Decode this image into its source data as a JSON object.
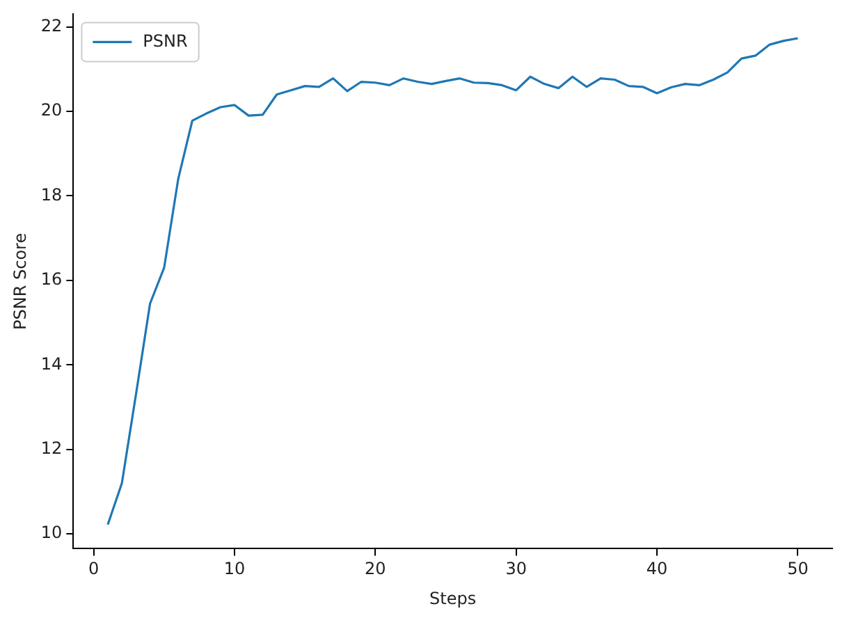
{
  "chart_data": {
    "type": "line",
    "xlabel": "Steps",
    "ylabel": "PSNR Score",
    "x": [
      1,
      2,
      3,
      4,
      5,
      6,
      7,
      8,
      9,
      10,
      11,
      12,
      13,
      14,
      15,
      16,
      17,
      18,
      19,
      20,
      21,
      22,
      23,
      24,
      25,
      26,
      27,
      28,
      29,
      30,
      31,
      32,
      33,
      34,
      35,
      36,
      37,
      38,
      39,
      40,
      41,
      42,
      43,
      44,
      45,
      46,
      47,
      48,
      49,
      50
    ],
    "series": [
      {
        "name": "PSNR",
        "color": "#1f77b4",
        "values": [
          10.22,
          11.2,
          13.3,
          15.45,
          16.3,
          18.4,
          19.78,
          19.95,
          20.1,
          20.15,
          19.9,
          19.92,
          20.4,
          20.5,
          20.6,
          20.58,
          20.78,
          20.48,
          20.7,
          20.68,
          20.62,
          20.78,
          20.7,
          20.65,
          20.72,
          20.78,
          20.68,
          20.67,
          20.62,
          20.5,
          20.82,
          20.65,
          20.55,
          20.82,
          20.58,
          20.78,
          20.75,
          20.6,
          20.58,
          20.43,
          20.57,
          20.65,
          20.62,
          20.75,
          20.92,
          21.25,
          21.32,
          21.58,
          21.67,
          21.73
        ]
      }
    ],
    "xlim": [
      -1.45,
      52.45
    ],
    "xticks": [
      0,
      10,
      20,
      30,
      40,
      50
    ],
    "ylim": [
      9.65,
      22.3
    ],
    "yticks": [
      10,
      12,
      14,
      16,
      18,
      20,
      22
    ],
    "grid": false,
    "legend": "top left",
    "marker": "none",
    "line_style": "solid"
  }
}
